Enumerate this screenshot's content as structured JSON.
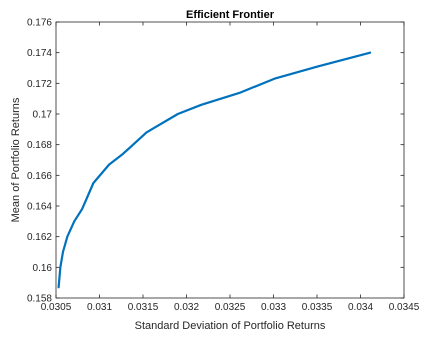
{
  "chart_data": {
    "type": "line",
    "title": "Efficient Frontier",
    "xlabel": "Standard Deviation of Portfolio Returns",
    "ylabel": "Mean of Portfolio Returns",
    "xlim": [
      0.0305,
      0.0345
    ],
    "ylim": [
      0.158,
      0.176
    ],
    "xticks": [
      0.0305,
      0.031,
      0.0315,
      0.032,
      0.0325,
      0.033,
      0.0335,
      0.034,
      0.0345
    ],
    "xtick_labels": [
      "0.0305",
      "0.031",
      "0.0315",
      "0.032",
      "0.0325",
      "0.033",
      "0.0335",
      "0.034",
      "0.0345"
    ],
    "yticks": [
      0.158,
      0.16,
      0.162,
      0.164,
      0.166,
      0.168,
      0.17,
      0.172,
      0.174,
      0.176
    ],
    "ytick_labels": [
      "0.158",
      "0.16",
      "0.162",
      "0.164",
      "0.166",
      "0.168",
      "0.17",
      "0.172",
      "0.174",
      "0.176"
    ],
    "grid": false,
    "box": true,
    "series": [
      {
        "color": "#0072BD",
        "x": [
          0.03053,
          0.03055,
          0.03058,
          0.03063,
          0.03071,
          0.0308,
          0.03093,
          0.03111,
          0.03127,
          0.03154,
          0.0319,
          0.03217,
          0.03262,
          0.03301,
          0.03351,
          0.03411
        ],
        "y": [
          0.1587,
          0.16,
          0.161,
          0.162,
          0.163,
          0.1638,
          0.1655,
          0.1667,
          0.1674,
          0.1688,
          0.17,
          0.1706,
          0.1714,
          0.1723,
          0.1731,
          0.174
        ]
      }
    ]
  }
}
